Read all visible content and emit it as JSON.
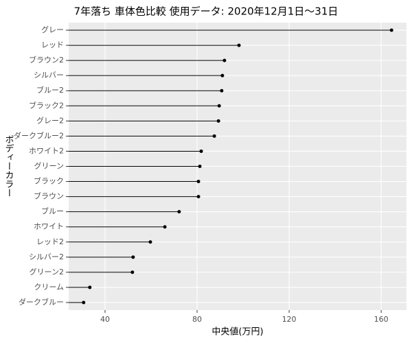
{
  "chart_data": {
    "type": "lollipop",
    "title": "7年落ち 車体色比較 使用データ: 2020年12月1日～31日",
    "x_label": "中央値(万円)",
    "y_label": "ボディーカラー",
    "categories": [
      "グレー",
      "レッド",
      "ブラウン2",
      "シルバー",
      "ブルー2",
      "ブラック2",
      "グレー2",
      "ダークブルー2",
      "ホワイト2",
      "グリーン",
      "ブラック",
      "ブラウン",
      "ブルー",
      "ホワイト",
      "レッド2",
      "シルバー2",
      "グリーン2",
      "クリーム",
      "ダークブルー"
    ],
    "values": [
      164.5,
      98.2,
      91.9,
      91.0,
      90.7,
      89.6,
      89.3,
      87.5,
      81.8,
      81.2,
      80.6,
      80.6,
      72.2,
      66.0,
      59.7,
      52.2,
      51.9,
      33.4,
      30.7
    ],
    "color": "#000000",
    "xlim": [
      24.2,
      171.0
    ],
    "xticks": [
      40,
      80,
      120,
      160
    ],
    "grid": true
  }
}
